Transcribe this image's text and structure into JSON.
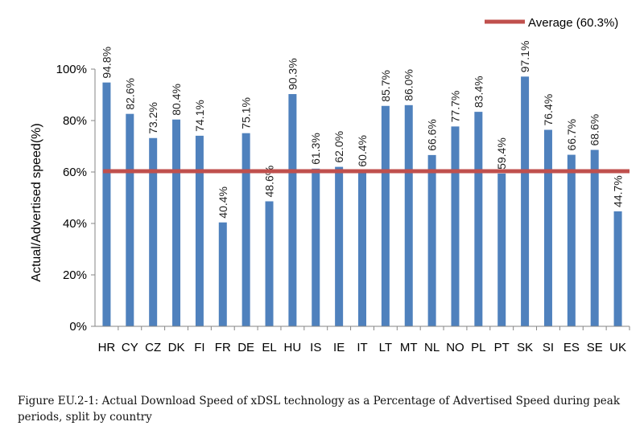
{
  "chart_data": {
    "type": "bar",
    "categories": [
      "HR",
      "CY",
      "CZ",
      "DK",
      "FI",
      "FR",
      "DE",
      "EL",
      "HU",
      "IS",
      "IE",
      "IT",
      "LT",
      "MT",
      "NL",
      "NO",
      "PL",
      "PT",
      "SK",
      "SI",
      "ES",
      "SE",
      "UK"
    ],
    "values": [
      94.8,
      82.6,
      73.2,
      80.4,
      74.1,
      40.4,
      75.1,
      48.6,
      90.3,
      61.3,
      62.0,
      60.4,
      85.7,
      86.0,
      66.6,
      77.7,
      83.4,
      59.4,
      97.1,
      76.4,
      66.7,
      68.6,
      44.7
    ],
    "data_labels": [
      "94.8%",
      "82.6%",
      "73.2%",
      "80.4%",
      "74.1%",
      "40.4%",
      "75.1%",
      "48.6%",
      "90.3%",
      "61.3%",
      "62.0%",
      "60.4%",
      "85.7%",
      "86.0%",
      "66.6%",
      "77.7%",
      "83.4%",
      "59.4%",
      "97.1%",
      "76.4%",
      "66.7%",
      "68.6%",
      "44.7%"
    ],
    "ylabel": "Actual/Advertised speed(%)",
    "xlabel": "",
    "ylim": [
      0,
      100
    ],
    "yticks": [
      0,
      20,
      40,
      60,
      80,
      100
    ],
    "ytick_labels": [
      "0%",
      "20%",
      "40%",
      "60%",
      "80%",
      "100%"
    ],
    "reference_line": {
      "label": "Average (60.3%)",
      "value": 60.3,
      "color": "#c0504d"
    },
    "bar_color": "#4f81bd",
    "legend_position": "top-right",
    "grid": false
  },
  "caption": "Figure EU.2-1: Actual Download Speed of xDSL technology as a Percentage of Advertised Speed during peak periods, split by country"
}
